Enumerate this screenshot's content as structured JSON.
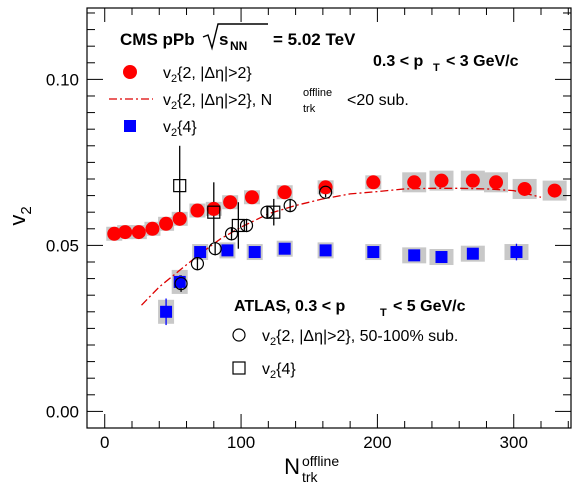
{
  "chart_data": {
    "type": "scatter",
    "title": "CMS pPb",
    "energy_label": {
      "prefix": "s",
      "sub": "NN",
      "value": "= 5.02 TeV"
    },
    "cms_pt_range": {
      "prefix": "0.3 < p",
      "sub": "T",
      "suffix": "< 3 GeV/c"
    },
    "atlas_label": {
      "prefix": "ATLAS, 0.3 < p",
      "sub": "T",
      "suffix": "< 5 GeV/c"
    },
    "xlabel": {
      "main": "N",
      "sup": "offline",
      "sub": "trk"
    },
    "ylabel": {
      "main": "v",
      "sub": "2"
    },
    "xlim": [
      -13,
      342
    ],
    "ylim": [
      -0.005,
      0.1215
    ],
    "xticks": [
      0,
      100,
      200,
      300
    ],
    "yticks": [
      {
        "value": 0.0,
        "label": "0.00"
      },
      {
        "value": 0.05,
        "label": "0.05"
      },
      {
        "value": 0.1,
        "label": "0.10"
      }
    ],
    "colors": {
      "red": "#ff0000",
      "blue": "#0000ff",
      "sys_box": "#c8c8c8",
      "fit_line": "#dd0000"
    },
    "legend_cms": [
      {
        "marker": "red-circle",
        "main": "v",
        "sub": "2",
        "rest": "{2, |Δη|>2}"
      },
      {
        "marker": "dashdot-line",
        "main": "v",
        "sub": "2",
        "rest": "{2, |Δη|>2}, N",
        "sup2": "offline",
        "sub2": "trk",
        "rest2": "<20 sub."
      },
      {
        "marker": "blue-square",
        "main": "v",
        "sub": "2",
        "rest": "{4}"
      }
    ],
    "legend_atlas": [
      {
        "marker": "open-circle",
        "main": "v",
        "sub": "2",
        "rest": "{2, |Δη|>2}, 50-100% sub."
      },
      {
        "marker": "open-square",
        "main": "v",
        "sub": "2",
        "rest": "{4}"
      }
    ],
    "series": [
      {
        "name": "CMS v2{2, |Δη|>2}",
        "marker": "red-circle",
        "x": [
          7,
          15,
          25,
          35,
          45,
          55,
          68,
          80,
          92,
          108,
          132,
          162,
          197,
          227,
          247,
          270,
          287,
          308,
          330
        ],
        "y": [
          0.0535,
          0.054,
          0.054,
          0.055,
          0.0565,
          0.058,
          0.0605,
          0.061,
          0.063,
          0.0645,
          0.066,
          0.0675,
          0.069,
          0.069,
          0.0695,
          0.0695,
          0.069,
          0.067,
          0.0665
        ]
      },
      {
        "name": "CMS v2{4}",
        "marker": "blue-square",
        "x": [
          45,
          55,
          70,
          90,
          110,
          132,
          162,
          197,
          227,
          247,
          270,
          302
        ],
        "y": [
          0.03,
          0.039,
          0.048,
          0.0485,
          0.048,
          0.049,
          0.0485,
          0.048,
          0.047,
          0.0465,
          0.0475,
          0.048
        ],
        "err": [
          0.004,
          0.002,
          0.0015,
          0.0015,
          0.0015,
          0.0015,
          0.0015,
          0.0015,
          0.0015,
          0.0015,
          0.0015,
          0.0025
        ]
      },
      {
        "name": "CMS v2{2, |Δη|>2}, Ntrk offline<20 sub.",
        "marker": "dashdot-line",
        "x": [
          27,
          40,
          55,
          70,
          85,
          100,
          120,
          140,
          160,
          180,
          200,
          220,
          240,
          260,
          280,
          300,
          320
        ],
        "y": [
          0.032,
          0.0375,
          0.0425,
          0.0475,
          0.052,
          0.0555,
          0.0595,
          0.062,
          0.064,
          0.0655,
          0.0662,
          0.067,
          0.0672,
          0.0672,
          0.067,
          0.0665,
          0.0645
        ]
      },
      {
        "name": "ATLAS v2{2, |Δη|>2}, 50-100% sub.",
        "marker": "open-circle",
        "x": [
          56,
          68,
          81,
          93,
          104,
          119,
          136,
          162
        ],
        "y": [
          0.0385,
          0.0445,
          0.049,
          0.0535,
          0.056,
          0.06,
          0.062,
          0.066
        ],
        "err": [
          0.0025,
          0.002,
          0.002,
          0.002,
          0.002,
          0.002,
          0.002,
          0.0015
        ]
      },
      {
        "name": "ATLAS v2{4}",
        "marker": "open-square",
        "x": [
          55,
          80,
          98,
          124
        ],
        "y": [
          0.068,
          0.06,
          0.056,
          0.06
        ],
        "err": [
          0.012,
          0.009,
          0.007,
          0.004
        ]
      }
    ]
  }
}
